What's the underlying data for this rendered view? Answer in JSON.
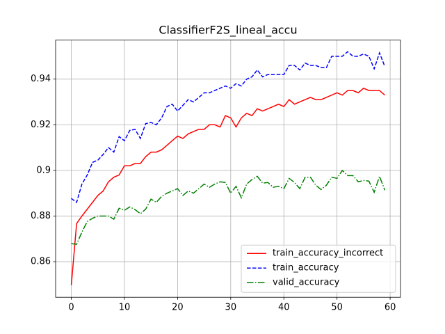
{
  "chart_data": {
    "type": "line",
    "title": "ClassifierF2S_lineal_accu",
    "x": [
      0,
      1,
      2,
      3,
      4,
      5,
      6,
      7,
      8,
      9,
      10,
      11,
      12,
      13,
      14,
      15,
      16,
      17,
      18,
      19,
      20,
      21,
      22,
      23,
      24,
      25,
      26,
      27,
      28,
      29,
      30,
      31,
      32,
      33,
      34,
      35,
      36,
      37,
      38,
      39,
      40,
      41,
      42,
      43,
      44,
      45,
      46,
      47,
      48,
      49,
      50,
      51,
      52,
      53,
      54,
      55,
      56,
      57,
      58,
      59
    ],
    "series": [
      {
        "name": "train_accuracy_incorrect",
        "color": "#ff0000",
        "linestyle": "solid",
        "values": [
          0.8497,
          0.8767,
          0.88,
          0.883,
          0.886,
          0.889,
          0.891,
          0.895,
          0.897,
          0.898,
          0.902,
          0.902,
          0.903,
          0.903,
          0.906,
          0.908,
          0.908,
          0.909,
          0.911,
          0.913,
          0.915,
          0.914,
          0.916,
          0.917,
          0.918,
          0.918,
          0.92,
          0.92,
          0.919,
          0.924,
          0.923,
          0.919,
          0.923,
          0.925,
          0.924,
          0.927,
          0.926,
          0.927,
          0.928,
          0.929,
          0.928,
          0.931,
          0.929,
          0.93,
          0.931,
          0.932,
          0.931,
          0.931,
          0.932,
          0.933,
          0.934,
          0.933,
          0.935,
          0.935,
          0.934,
          0.936,
          0.935,
          0.935,
          0.935,
          0.933
        ]
      },
      {
        "name": "train_accuracy",
        "color": "#0000ff",
        "linestyle": "dashed",
        "values": [
          0.8877,
          0.886,
          0.894,
          0.898,
          0.9035,
          0.9045,
          0.907,
          0.91,
          0.908,
          0.9148,
          0.913,
          0.9175,
          0.918,
          0.914,
          0.9205,
          0.921,
          0.92,
          0.923,
          0.928,
          0.929,
          0.926,
          0.9285,
          0.931,
          0.93,
          0.932,
          0.934,
          0.934,
          0.935,
          0.936,
          0.937,
          0.936,
          0.938,
          0.937,
          0.94,
          0.941,
          0.944,
          0.941,
          0.942,
          0.942,
          0.942,
          0.942,
          0.946,
          0.946,
          0.944,
          0.947,
          0.946,
          0.946,
          0.945,
          0.945,
          0.95,
          0.95,
          0.95,
          0.952,
          0.95,
          0.95,
          0.951,
          0.95,
          0.9445,
          0.9515,
          0.9455
        ]
      },
      {
        "name": "valid_accuracy",
        "color": "#008000",
        "linestyle": "dashdot",
        "values": [
          0.8679,
          0.8676,
          0.873,
          0.8776,
          0.879,
          0.88,
          0.88,
          0.88,
          0.8786,
          0.8834,
          0.8825,
          0.884,
          0.8828,
          0.881,
          0.883,
          0.8874,
          0.886,
          0.8886,
          0.89,
          0.891,
          0.892,
          0.889,
          0.891,
          0.89,
          0.892,
          0.894,
          0.8926,
          0.894,
          0.895,
          0.8947,
          0.89,
          0.893,
          0.888,
          0.894,
          0.896,
          0.8974,
          0.8944,
          0.8947,
          0.8926,
          0.893,
          0.892,
          0.8965,
          0.8947,
          0.892,
          0.897,
          0.897,
          0.8935,
          0.8916,
          0.8935,
          0.897,
          0.8965,
          0.9,
          0.8977,
          0.8977,
          0.895,
          0.8956,
          0.8953,
          0.8904,
          0.8974,
          0.8913
        ]
      }
    ],
    "xlim": [
      -2.95,
      61.95
    ],
    "ylim": [
      0.8444,
      0.9571
    ],
    "xticks": [
      0,
      10,
      20,
      30,
      40,
      50,
      60
    ],
    "yticks": [
      0.86,
      0.88,
      0.9,
      0.92,
      0.94
    ],
    "grid": true,
    "legend": "lower right"
  }
}
